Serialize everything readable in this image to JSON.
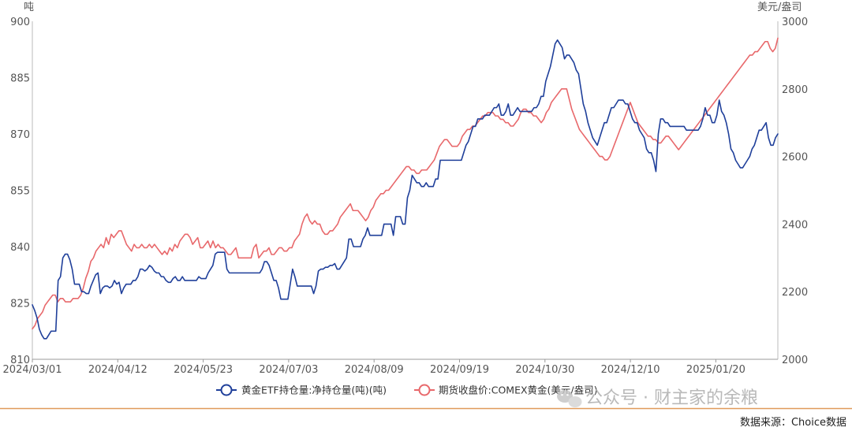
{
  "chart_data": {
    "type": "line",
    "left_axis": {
      "unit": "吨",
      "ticks": [
        "900",
        "885",
        "870",
        "855",
        "840",
        "825",
        "810"
      ],
      "range": [
        810,
        900
      ]
    },
    "right_axis": {
      "unit": "美元/盎司",
      "ticks": [
        "3000",
        "2800",
        "2600",
        "2400",
        "2200",
        "2000"
      ],
      "range": [
        2000,
        3000
      ]
    },
    "x_ticks": [
      "2024/03/01",
      "2024/04/12",
      "2024/05/23",
      "2024/07/03",
      "2024/08/09",
      "2024/09/19",
      "2024/10/30",
      "2024/12/10",
      "2025/01/20"
    ],
    "grid": false,
    "legend_position": "bottom-center",
    "series": [
      {
        "name": "黄金ETF持仓量:净持仓量(吨)(吨)",
        "axis": "left",
        "color": "#1f3f9a",
        "values": [
          824.5,
          823,
          821,
          818,
          816.5,
          815.5,
          815.5,
          816.5,
          817.5,
          817.5,
          817.5,
          831,
          832,
          837,
          838,
          838,
          836.5,
          834,
          830,
          830,
          830,
          828,
          828,
          827.5,
          827.5,
          829.5,
          831,
          832.5,
          833,
          827.5,
          829,
          829.5,
          829.5,
          829,
          829.5,
          831,
          830,
          830.5,
          827.5,
          829,
          830,
          830,
          830,
          831,
          831,
          832,
          834,
          834,
          833.5,
          834,
          835,
          834.5,
          833.5,
          833,
          833,
          832,
          832,
          831,
          830.5,
          830.5,
          831.5,
          832,
          831,
          831,
          832,
          831,
          831,
          831,
          831,
          831,
          831,
          832,
          831.5,
          831.5,
          831.5,
          833,
          834,
          835,
          838,
          838.5,
          838.5,
          838.5,
          838.5,
          834,
          833,
          833,
          833,
          833,
          833,
          833,
          833,
          833,
          833,
          833,
          833,
          833,
          833,
          833,
          834,
          836,
          836,
          835,
          833,
          831,
          831,
          829,
          826,
          826,
          826,
          826,
          830,
          834,
          832,
          829.5,
          829.5,
          829.5,
          829.5,
          829.5,
          829.5,
          829.5,
          827.5,
          829.5,
          833.5,
          834,
          834,
          834.5,
          834.5,
          835,
          835,
          835.5,
          834,
          834,
          835,
          836,
          837,
          842,
          842,
          840,
          840,
          840,
          840,
          842,
          843,
          845,
          843,
          843,
          843,
          843,
          843,
          843,
          846,
          846,
          846,
          846,
          843,
          848,
          848,
          848,
          846,
          846,
          853,
          855,
          859,
          858,
          857,
          857,
          856,
          856,
          857,
          856,
          856,
          856,
          858,
          858,
          863,
          863,
          863,
          863,
          863,
          863,
          863,
          863,
          863,
          863,
          865,
          867,
          868,
          870,
          872,
          872,
          874,
          874,
          874,
          875,
          875,
          875,
          876,
          877,
          877,
          878,
          875,
          875,
          876,
          878,
          875,
          875,
          876,
          877,
          876,
          876,
          876,
          876,
          876,
          876,
          877,
          877,
          878,
          880,
          880,
          884,
          886,
          888,
          891,
          894,
          895,
          894,
          893,
          890,
          891,
          891,
          890,
          889,
          887,
          886,
          882,
          878,
          876,
          873,
          871,
          869,
          868,
          867,
          869,
          871,
          873,
          873,
          875,
          877,
          877,
          878,
          879,
          879,
          879,
          878,
          878,
          876,
          874,
          873,
          873,
          871,
          870,
          869,
          866,
          865,
          865,
          863,
          860,
          870,
          874,
          874,
          873,
          873,
          872,
          872,
          872,
          872,
          872,
          872,
          872,
          871,
          871,
          871,
          871,
          871,
          871,
          872,
          874,
          877,
          875,
          875,
          873,
          873,
          875,
          879,
          876,
          875,
          873,
          870,
          866,
          865,
          863,
          862,
          861,
          861,
          862,
          863,
          864,
          866,
          867,
          869,
          871,
          871,
          872,
          873,
          869,
          867,
          867,
          869,
          870
        ]
      },
      {
        "name": "期货收盘价:COMEX黄金(美元/盎司)",
        "axis": "right",
        "color": "#e8686b",
        "values": [
          2090,
          2100,
          2120,
          2130,
          2140,
          2160,
          2170,
          2180,
          2190,
          2190,
          2170,
          2180,
          2180,
          2170,
          2170,
          2170,
          2180,
          2180,
          2180,
          2190,
          2210,
          2240,
          2260,
          2290,
          2300,
          2320,
          2330,
          2340,
          2330,
          2360,
          2340,
          2370,
          2360,
          2370,
          2380,
          2380,
          2360,
          2340,
          2330,
          2320,
          2340,
          2330,
          2330,
          2340,
          2330,
          2330,
          2340,
          2330,
          2340,
          2330,
          2320,
          2310,
          2320,
          2310,
          2330,
          2320,
          2340,
          2330,
          2350,
          2360,
          2370,
          2370,
          2360,
          2340,
          2350,
          2360,
          2330,
          2330,
          2340,
          2350,
          2330,
          2350,
          2330,
          2340,
          2330,
          2330,
          2320,
          2310,
          2310,
          2320,
          2330,
          2300,
          2300,
          2300,
          2300,
          2300,
          2300,
          2330,
          2340,
          2300,
          2310,
          2320,
          2320,
          2330,
          2310,
          2310,
          2320,
          2330,
          2330,
          2320,
          2320,
          2330,
          2330,
          2350,
          2360,
          2370,
          2400,
          2420,
          2430,
          2410,
          2400,
          2410,
          2400,
          2400,
          2380,
          2370,
          2370,
          2380,
          2380,
          2390,
          2400,
          2420,
          2430,
          2440,
          2450,
          2460,
          2440,
          2440,
          2440,
          2430,
          2420,
          2410,
          2420,
          2440,
          2450,
          2470,
          2480,
          2490,
          2490,
          2500,
          2500,
          2510,
          2520,
          2530,
          2540,
          2550,
          2560,
          2570,
          2570,
          2560,
          2560,
          2550,
          2550,
          2560,
          2560,
          2560,
          2570,
          2580,
          2590,
          2610,
          2630,
          2640,
          2650,
          2650,
          2640,
          2630,
          2630,
          2630,
          2640,
          2660,
          2670,
          2680,
          2680,
          2690,
          2690,
          2700,
          2710,
          2720,
          2720,
          2730,
          2730,
          2730,
          2720,
          2720,
          2710,
          2710,
          2700,
          2700,
          2690,
          2690,
          2700,
          2710,
          2730,
          2740,
          2740,
          2730,
          2730,
          2720,
          2720,
          2710,
          2700,
          2710,
          2730,
          2740,
          2760,
          2770,
          2780,
          2790,
          2800,
          2800,
          2800,
          2770,
          2740,
          2720,
          2700,
          2680,
          2670,
          2660,
          2650,
          2640,
          2630,
          2620,
          2610,
          2600,
          2600,
          2590,
          2590,
          2600,
          2620,
          2640,
          2660,
          2680,
          2700,
          2720,
          2740,
          2760,
          2740,
          2720,
          2700,
          2690,
          2680,
          2670,
          2660,
          2660,
          2650,
          2650,
          2640,
          2640,
          2650,
          2660,
          2660,
          2650,
          2640,
          2630,
          2620,
          2630,
          2640,
          2650,
          2660,
          2670,
          2680,
          2690,
          2700,
          2710,
          2720,
          2730,
          2740,
          2750,
          2760,
          2770,
          2780,
          2790,
          2800,
          2810,
          2820,
          2830,
          2840,
          2850,
          2860,
          2870,
          2880,
          2890,
          2900,
          2900,
          2910,
          2910,
          2920,
          2930,
          2940,
          2940,
          2920,
          2910,
          2920,
          2950
        ]
      }
    ]
  },
  "watermark": "公众号 · 财主家的余粮",
  "source": "数据来源：Choice数据",
  "colors": {
    "gold_line": "#e8686b",
    "etf_line": "#1f3f9a",
    "axis": "#999999",
    "separator": "#e09a5a"
  }
}
